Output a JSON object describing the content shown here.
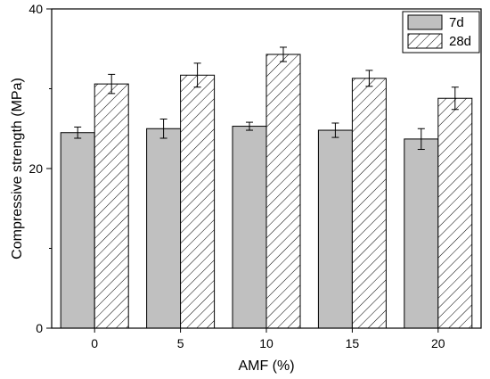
{
  "chart_data": {
    "type": "bar",
    "xlabel": "AMF (%)",
    "ylabel": "Compressive strength (MPa)",
    "categories": [
      "0",
      "5",
      "10",
      "15",
      "20"
    ],
    "ylim": [
      0,
      40
    ],
    "yticks": [
      0,
      20,
      40
    ],
    "legend_position": "top-right",
    "grid": false,
    "series": [
      {
        "name": "7d",
        "values": [
          24.5,
          25.0,
          25.3,
          24.8,
          23.7
        ],
        "errors": [
          0.7,
          1.2,
          0.5,
          0.9,
          1.3
        ],
        "fill": "#c0c0c0",
        "pattern": "solid"
      },
      {
        "name": "28d",
        "values": [
          30.6,
          31.7,
          34.3,
          31.3,
          28.8
        ],
        "errors": [
          1.2,
          1.5,
          0.9,
          1.0,
          1.4
        ],
        "fill": "#ffffff",
        "pattern": "hatch"
      }
    ]
  }
}
